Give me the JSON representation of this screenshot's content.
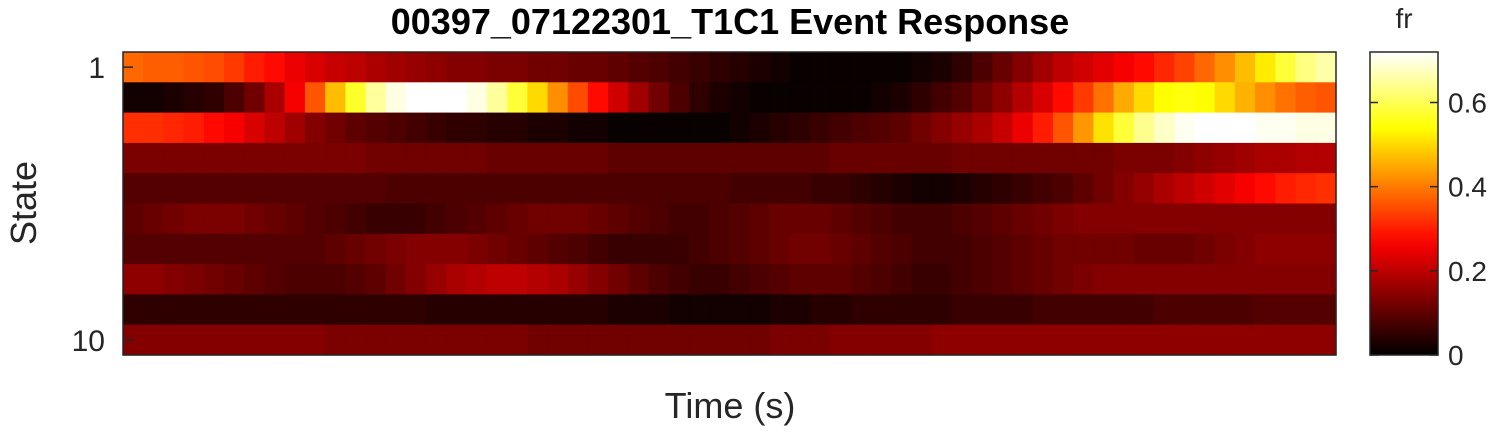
{
  "chart_data": {
    "type": "heatmap",
    "title": "00397_07122301_T1C1 Event Response",
    "xlabel": "Time (s)",
    "ylabel": "State",
    "y_tick_labels": [
      {
        "state": 1,
        "label": "1"
      },
      {
        "state": 10,
        "label": "10"
      }
    ],
    "x_tick_labels": [],
    "colormap": "hot",
    "colorbar": {
      "label": "fr",
      "range": [
        0,
        0.72
      ],
      "ticks": [
        {
          "value": 0,
          "label": "0"
        },
        {
          "value": 0.2,
          "label": "0.2"
        },
        {
          "value": 0.4,
          "label": "0.4"
        },
        {
          "value": 0.6,
          "label": "0.6"
        }
      ]
    },
    "states": 10,
    "time_bins": 60,
    "values": [
      [
        0.38,
        0.37,
        0.37,
        0.36,
        0.35,
        0.33,
        0.3,
        0.28,
        0.25,
        0.23,
        0.21,
        0.2,
        0.18,
        0.17,
        0.16,
        0.15,
        0.14,
        0.14,
        0.13,
        0.13,
        0.12,
        0.12,
        0.11,
        0.11,
        0.1,
        0.09,
        0.08,
        0.07,
        0.06,
        0.05,
        0.04,
        0.03,
        0.02,
        0.01,
        0.01,
        0.01,
        0.01,
        0.01,
        0.01,
        0.02,
        0.03,
        0.05,
        0.08,
        0.11,
        0.14,
        0.17,
        0.2,
        0.22,
        0.24,
        0.26,
        0.28,
        0.31,
        0.34,
        0.38,
        0.42,
        0.47,
        0.52,
        0.58,
        0.63,
        0.66
      ],
      [
        0.02,
        0.02,
        0.03,
        0.04,
        0.05,
        0.08,
        0.12,
        0.18,
        0.26,
        0.36,
        0.47,
        0.57,
        0.65,
        0.7,
        0.73,
        0.74,
        0.73,
        0.7,
        0.65,
        0.58,
        0.5,
        0.42,
        0.35,
        0.28,
        0.22,
        0.17,
        0.12,
        0.08,
        0.05,
        0.03,
        0.02,
        0.01,
        0.01,
        0.01,
        0.01,
        0.01,
        0.01,
        0.02,
        0.03,
        0.05,
        0.07,
        0.09,
        0.12,
        0.15,
        0.19,
        0.23,
        0.28,
        0.33,
        0.39,
        0.45,
        0.5,
        0.54,
        0.55,
        0.54,
        0.5,
        0.46,
        0.42,
        0.39,
        0.37,
        0.36
      ],
      [
        0.32,
        0.32,
        0.31,
        0.3,
        0.28,
        0.26,
        0.23,
        0.2,
        0.17,
        0.14,
        0.12,
        0.1,
        0.09,
        0.08,
        0.07,
        0.06,
        0.05,
        0.05,
        0.04,
        0.04,
        0.03,
        0.03,
        0.02,
        0.02,
        0.01,
        0.01,
        0.01,
        0.01,
        0.01,
        0.01,
        0.02,
        0.03,
        0.04,
        0.05,
        0.06,
        0.07,
        0.08,
        0.09,
        0.1,
        0.12,
        0.14,
        0.16,
        0.18,
        0.21,
        0.25,
        0.3,
        0.36,
        0.43,
        0.51,
        0.58,
        0.64,
        0.68,
        0.71,
        0.72,
        0.72,
        0.72,
        0.71,
        0.71,
        0.7,
        0.7
      ],
      [
        0.13,
        0.13,
        0.13,
        0.13,
        0.13,
        0.13,
        0.13,
        0.13,
        0.13,
        0.13,
        0.13,
        0.13,
        0.12,
        0.12,
        0.12,
        0.12,
        0.12,
        0.12,
        0.11,
        0.11,
        0.11,
        0.11,
        0.11,
        0.11,
        0.1,
        0.1,
        0.1,
        0.1,
        0.1,
        0.1,
        0.1,
        0.1,
        0.1,
        0.1,
        0.1,
        0.11,
        0.11,
        0.11,
        0.11,
        0.11,
        0.11,
        0.12,
        0.12,
        0.12,
        0.12,
        0.12,
        0.12,
        0.12,
        0.12,
        0.13,
        0.13,
        0.13,
        0.14,
        0.15,
        0.16,
        0.17,
        0.18,
        0.18,
        0.19,
        0.19
      ],
      [
        0.09,
        0.09,
        0.09,
        0.09,
        0.09,
        0.09,
        0.09,
        0.09,
        0.09,
        0.09,
        0.09,
        0.09,
        0.09,
        0.08,
        0.08,
        0.08,
        0.08,
        0.08,
        0.08,
        0.08,
        0.08,
        0.08,
        0.08,
        0.08,
        0.08,
        0.08,
        0.08,
        0.08,
        0.08,
        0.08,
        0.07,
        0.07,
        0.07,
        0.07,
        0.06,
        0.06,
        0.05,
        0.04,
        0.03,
        0.02,
        0.02,
        0.03,
        0.04,
        0.05,
        0.06,
        0.07,
        0.08,
        0.1,
        0.12,
        0.14,
        0.16,
        0.18,
        0.2,
        0.22,
        0.24,
        0.26,
        0.28,
        0.3,
        0.31,
        0.32
      ],
      [
        0.1,
        0.11,
        0.12,
        0.13,
        0.13,
        0.13,
        0.12,
        0.11,
        0.1,
        0.09,
        0.08,
        0.07,
        0.06,
        0.06,
        0.06,
        0.07,
        0.08,
        0.09,
        0.1,
        0.11,
        0.12,
        0.12,
        0.12,
        0.11,
        0.1,
        0.09,
        0.08,
        0.07,
        0.07,
        0.08,
        0.09,
        0.1,
        0.11,
        0.11,
        0.11,
        0.1,
        0.09,
        0.08,
        0.07,
        0.07,
        0.07,
        0.08,
        0.09,
        0.1,
        0.11,
        0.12,
        0.13,
        0.14,
        0.14,
        0.14,
        0.14,
        0.14,
        0.14,
        0.14,
        0.14,
        0.14,
        0.14,
        0.14,
        0.14,
        0.14
      ],
      [
        0.09,
        0.09,
        0.09,
        0.09,
        0.09,
        0.09,
        0.09,
        0.09,
        0.09,
        0.09,
        0.1,
        0.11,
        0.12,
        0.13,
        0.14,
        0.14,
        0.14,
        0.13,
        0.12,
        0.11,
        0.1,
        0.09,
        0.08,
        0.07,
        0.06,
        0.06,
        0.06,
        0.06,
        0.07,
        0.08,
        0.09,
        0.1,
        0.11,
        0.12,
        0.12,
        0.11,
        0.1,
        0.09,
        0.08,
        0.07,
        0.07,
        0.07,
        0.08,
        0.09,
        0.1,
        0.11,
        0.12,
        0.12,
        0.12,
        0.12,
        0.11,
        0.11,
        0.11,
        0.12,
        0.13,
        0.14,
        0.15,
        0.15,
        0.15,
        0.15
      ],
      [
        0.15,
        0.15,
        0.14,
        0.13,
        0.12,
        0.11,
        0.1,
        0.09,
        0.08,
        0.08,
        0.08,
        0.09,
        0.1,
        0.12,
        0.14,
        0.16,
        0.18,
        0.19,
        0.2,
        0.2,
        0.19,
        0.18,
        0.16,
        0.14,
        0.12,
        0.1,
        0.08,
        0.07,
        0.06,
        0.06,
        0.07,
        0.08,
        0.09,
        0.1,
        0.1,
        0.1,
        0.09,
        0.08,
        0.07,
        0.06,
        0.06,
        0.07,
        0.08,
        0.09,
        0.1,
        0.11,
        0.12,
        0.13,
        0.14,
        0.14,
        0.14,
        0.14,
        0.14,
        0.14,
        0.14,
        0.14,
        0.14,
        0.14,
        0.14,
        0.14
      ],
      [
        0.05,
        0.05,
        0.05,
        0.05,
        0.05,
        0.05,
        0.05,
        0.05,
        0.05,
        0.05,
        0.05,
        0.05,
        0.05,
        0.05,
        0.05,
        0.04,
        0.04,
        0.04,
        0.04,
        0.04,
        0.04,
        0.04,
        0.04,
        0.04,
        0.03,
        0.03,
        0.03,
        0.02,
        0.02,
        0.02,
        0.02,
        0.02,
        0.03,
        0.03,
        0.04,
        0.04,
        0.05,
        0.05,
        0.05,
        0.05,
        0.05,
        0.06,
        0.06,
        0.06,
        0.06,
        0.07,
        0.07,
        0.07,
        0.07,
        0.07,
        0.07,
        0.08,
        0.08,
        0.08,
        0.08,
        0.08,
        0.09,
        0.09,
        0.09,
        0.09
      ],
      [
        0.14,
        0.14,
        0.14,
        0.14,
        0.14,
        0.14,
        0.14,
        0.14,
        0.14,
        0.14,
        0.13,
        0.13,
        0.13,
        0.13,
        0.13,
        0.13,
        0.13,
        0.13,
        0.13,
        0.13,
        0.12,
        0.12,
        0.12,
        0.12,
        0.12,
        0.12,
        0.12,
        0.12,
        0.12,
        0.12,
        0.12,
        0.12,
        0.13,
        0.13,
        0.13,
        0.14,
        0.14,
        0.14,
        0.14,
        0.14,
        0.15,
        0.15,
        0.15,
        0.15,
        0.15,
        0.15,
        0.15,
        0.15,
        0.15,
        0.15,
        0.15,
        0.15,
        0.15,
        0.15,
        0.15,
        0.15,
        0.15,
        0.15,
        0.15,
        0.15
      ]
    ]
  }
}
